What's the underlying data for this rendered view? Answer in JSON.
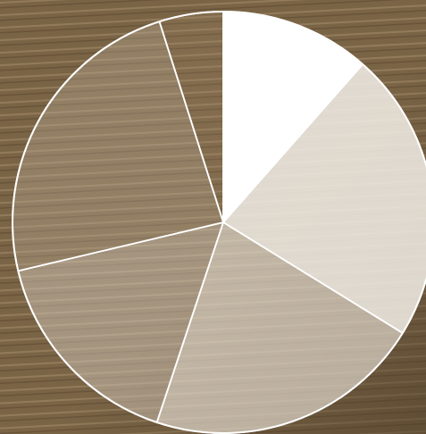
{
  "chart_data": {
    "type": "pie",
    "title": "",
    "slices": [
      {
        "value": 11.5,
        "fill": "#ffffff",
        "opacity": 1.0
      },
      {
        "value": 22.3,
        "fill": "#f1ede6",
        "opacity": 0.86
      },
      {
        "value": 21.3,
        "fill": "#e6dfd4",
        "opacity": 0.66
      },
      {
        "value": 16.2,
        "fill": "#d7cdbf",
        "opacity": 0.47
      },
      {
        "value": 23.8,
        "fill": "#c2b49f",
        "opacity": 0.34
      },
      {
        "value": 4.9,
        "fill": "#a08a6a",
        "opacity": 0.22
      }
    ],
    "direction": "clockwise",
    "start": "12 o'clock",
    "slice_border_color": "#ffffff",
    "legend": "none"
  },
  "background": {
    "type": "photo",
    "description_tag": "aerial-farm-field",
    "base_color": "#7a6446",
    "stripe_light": "#a38d6d",
    "stripe_dark": "#5a4630",
    "corner_dark": "#4a3a26"
  }
}
